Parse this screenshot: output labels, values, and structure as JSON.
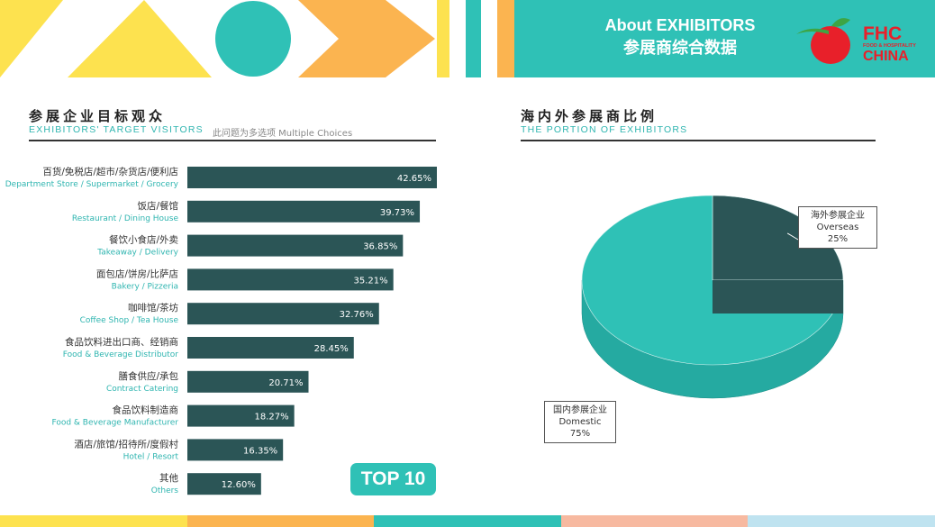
{
  "header": {
    "title_en": "About EXHIBITORS",
    "title_cn": "参展商综合数据",
    "logo_fhc": "FHC",
    "logo_small": "FOOD & HOSPITALITY",
    "logo_china": "CHINA"
  },
  "left_section": {
    "title": "参展企业目标观众",
    "subtitle": "EXHIBITORS' TARGET VISITORS",
    "note": "此问题为多选项 Multiple Choices"
  },
  "right_section": {
    "title": "海内外参展商比例",
    "subtitle": "THE PORTION OF EXHIBITORS"
  },
  "badge": "TOP 10",
  "colors": {
    "teal": "#2fc1b6",
    "dark_slate": "#2b5556",
    "yellow": "#fde24f",
    "orange": "#fbb450",
    "peach": "#f7b9a0",
    "light_blue": "#bfe3f0"
  },
  "chart_data": [
    {
      "type": "bar",
      "orientation": "horizontal",
      "title": "参展企业目标观众",
      "categories": [
        {
          "cn": "百货/免税店/超市/杂货店/便利店",
          "en": "Department Store / Supermarket / Grocery"
        },
        {
          "cn": "饭店/餐馆",
          "en": "Restaurant / Dining House"
        },
        {
          "cn": "餐饮小食店/外卖",
          "en": "Takeaway / Delivery"
        },
        {
          "cn": "面包店/饼房/比萨店",
          "en": "Bakery / Pizzeria"
        },
        {
          "cn": "咖啡馆/茶坊",
          "en": "Coffee Shop / Tea House"
        },
        {
          "cn": "食品饮料进出口商、经销商",
          "en": "Food & Beverage Distributor"
        },
        {
          "cn": "膳食供应/承包",
          "en": "Contract Catering"
        },
        {
          "cn": "食品饮料制造商",
          "en": "Food & Beverage Manufacturer"
        },
        {
          "cn": "酒店/旅馆/招待所/度假村",
          "en": "Hotel / Resort"
        },
        {
          "cn": "其他",
          "en": "Others"
        }
      ],
      "values": [
        42.65,
        39.73,
        36.85,
        35.21,
        32.76,
        28.45,
        20.71,
        18.27,
        16.35,
        12.6
      ],
      "value_labels": [
        "42.65%",
        "39.73%",
        "36.85%",
        "35.21%",
        "32.76%",
        "28.45%",
        "20.71%",
        "18.27%",
        "16.35%",
        "12.60%"
      ],
      "xlim": [
        0,
        42.65
      ]
    },
    {
      "type": "pie",
      "title": "海内外参展商比例",
      "slices": [
        {
          "label_cn": "海外参展企业",
          "label_en": "Overseas",
          "value": 25,
          "value_label": "25%"
        },
        {
          "label_cn": "国内参展企业",
          "label_en": "Domestic",
          "value": 75,
          "value_label": "75%"
        }
      ]
    }
  ]
}
